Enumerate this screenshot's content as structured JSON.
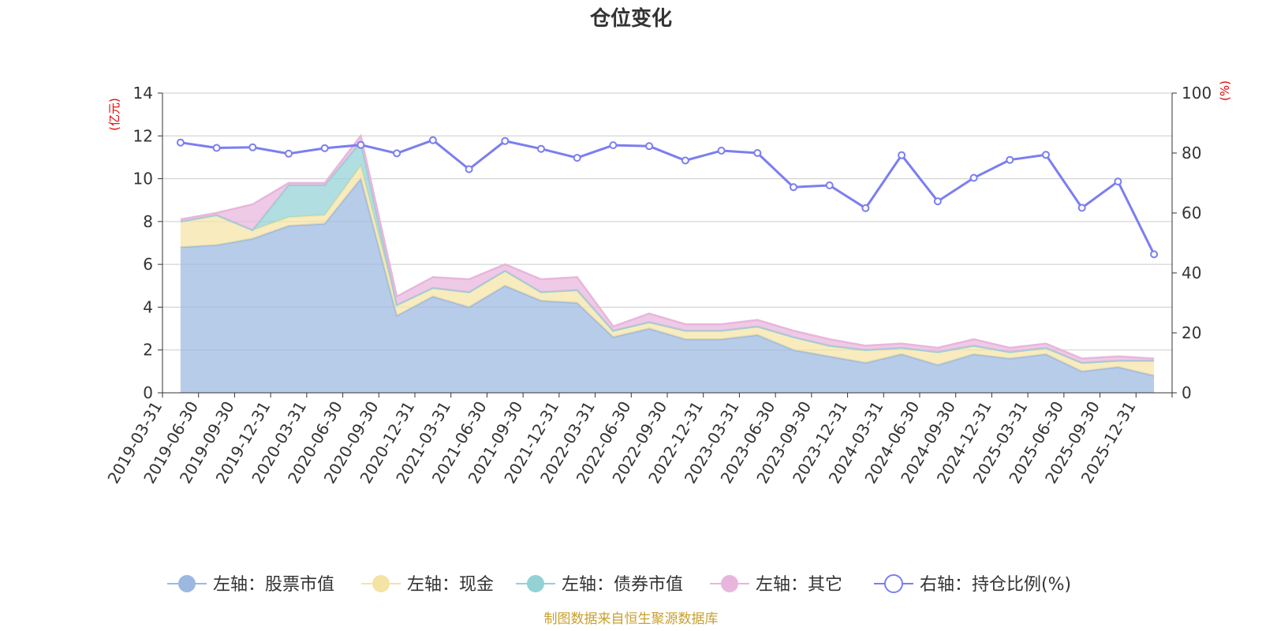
{
  "chart_data": {
    "type": "area",
    "title": "仓位变化",
    "left_unit": "(亿元)",
    "right_unit": "(%)",
    "categories": [
      "2019-03-31",
      "2019-06-30",
      "2019-09-30",
      "2019-12-31",
      "2020-03-31",
      "2020-06-30",
      "2020-09-30",
      "2020-12-31",
      "2021-03-31",
      "2021-06-30",
      "2021-09-30",
      "2021-12-31",
      "2022-03-31",
      "2022-06-30",
      "2022-09-30",
      "2022-12-31",
      "2023-03-31",
      "2023-06-30",
      "2023-09-30",
      "2023-12-31",
      "2024-03-31",
      "2024-06-30",
      "2024-09-30",
      "2024-12-31",
      "2025-03-31",
      "2025-06-30",
      "2025-09-30",
      "2025-12-31"
    ],
    "left_axis": {
      "min": 0,
      "max": 14,
      "ticks": [
        0,
        2,
        4,
        6,
        8,
        10,
        12,
        14
      ]
    },
    "right_axis": {
      "min": 0,
      "max": 100,
      "ticks": [
        0,
        20,
        40,
        60,
        80,
        100
      ]
    },
    "series": [
      {
        "name": "左轴：股票市值",
        "axis": "left",
        "stacked": true,
        "color": "#9bb8e0",
        "values": [
          6.8,
          6.9,
          7.2,
          7.8,
          7.9,
          10.0,
          3.6,
          4.5,
          4.0,
          5.0,
          4.3,
          4.2,
          2.6,
          3.0,
          2.5,
          2.5,
          2.7,
          2.0,
          1.7,
          1.4,
          1.8,
          1.3,
          1.8,
          1.6,
          1.8,
          1.0,
          1.2,
          0.8
        ]
      },
      {
        "name": "左轴：现金",
        "axis": "left",
        "stacked": true,
        "color": "#f5e3a3",
        "values": [
          1.2,
          1.4,
          0.4,
          0.4,
          0.4,
          0.6,
          0.5,
          0.4,
          0.7,
          0.7,
          0.4,
          0.6,
          0.3,
          0.3,
          0.4,
          0.4,
          0.4,
          0.6,
          0.5,
          0.6,
          0.3,
          0.6,
          0.4,
          0.3,
          0.3,
          0.4,
          0.3,
          0.7
        ]
      },
      {
        "name": "左轴：债券市值",
        "axis": "left",
        "stacked": true,
        "color": "#93d1d4",
        "values": [
          0.0,
          0.0,
          0.0,
          1.5,
          1.4,
          1.1,
          0.0,
          0.0,
          0.0,
          0.0,
          0.0,
          0.0,
          0.0,
          0.0,
          0.0,
          0.0,
          0.0,
          0.0,
          0.0,
          0.0,
          0.0,
          0.0,
          0.0,
          0.0,
          0.0,
          0.0,
          0.0,
          0.0
        ]
      },
      {
        "name": "左轴：其它",
        "axis": "left",
        "stacked": true,
        "color": "#e8b6dc",
        "values": [
          0.1,
          0.1,
          1.2,
          0.1,
          0.1,
          0.3,
          0.4,
          0.5,
          0.6,
          0.3,
          0.6,
          0.6,
          0.2,
          0.4,
          0.3,
          0.3,
          0.3,
          0.3,
          0.3,
          0.2,
          0.2,
          0.2,
          0.3,
          0.2,
          0.2,
          0.2,
          0.2,
          0.1
        ]
      },
      {
        "name": "右轴：持仓比例(%)",
        "axis": "right",
        "stacked": false,
        "color": "#7b7ef0",
        "values": [
          83.5,
          81.7,
          81.9,
          79.8,
          81.6,
          82.7,
          79.9,
          84.3,
          74.6,
          84.0,
          81.4,
          78.4,
          82.6,
          82.3,
          77.5,
          80.8,
          80.0,
          68.6,
          69.2,
          61.6,
          79.3,
          63.9,
          71.7,
          77.7,
          79.4,
          61.7,
          70.5,
          46.2
        ]
      }
    ],
    "legend_position": "bottom"
  },
  "footer": "制图数据来自恒生聚源数据库"
}
